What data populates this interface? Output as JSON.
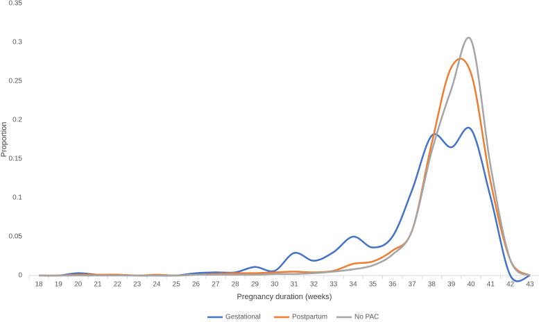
{
  "chart_data": {
    "type": "line",
    "x_label": "Pregnancy duration (weeks)",
    "y_label": "Proportion",
    "categories": [
      "18",
      "19",
      "20",
      "21",
      "22",
      "23",
      "24",
      "25",
      "26",
      "27",
      "28",
      "29",
      "30",
      "31",
      "32",
      "33",
      "34",
      "35",
      "36",
      "37",
      "38",
      "39",
      "40",
      "41",
      "42",
      "43"
    ],
    "series": [
      {
        "name": "Gestational",
        "color": "#4472c4",
        "values": [
          0,
          0,
          0.003,
          0.001,
          0.001,
          0,
          0,
          0,
          0.003,
          0.004,
          0.004,
          0.011,
          0.006,
          0.029,
          0.019,
          0.03,
          0.05,
          0.036,
          0.05,
          0.11,
          0.18,
          0.165,
          0.188,
          0.1,
          0,
          0
        ]
      },
      {
        "name": "Postpartum",
        "color": "#ed7d31",
        "values": [
          0,
          0,
          0.001,
          0.001,
          0.001,
          0,
          0.001,
          0,
          0.001,
          0.002,
          0.003,
          0.003,
          0.004,
          0.005,
          0.004,
          0.006,
          0.015,
          0.018,
          0.032,
          0.058,
          0.17,
          0.268,
          0.26,
          0.12,
          0.02,
          0
        ]
      },
      {
        "name": "No PAC",
        "color": "#a5a5a5",
        "values": [
          0,
          0,
          0,
          0,
          0,
          0,
          0,
          0,
          0.001,
          0.001,
          0.001,
          0.001,
          0.002,
          0.002,
          0.003,
          0.005,
          0.008,
          0.013,
          0.027,
          0.058,
          0.16,
          0.24,
          0.303,
          0.14,
          0.02,
          0
        ]
      }
    ],
    "ylim": [
      0,
      0.35
    ],
    "yticks": [
      0,
      0.05,
      0.1,
      0.15,
      0.2,
      0.25,
      0.3,
      0.35
    ],
    "legend": "bottom"
  }
}
